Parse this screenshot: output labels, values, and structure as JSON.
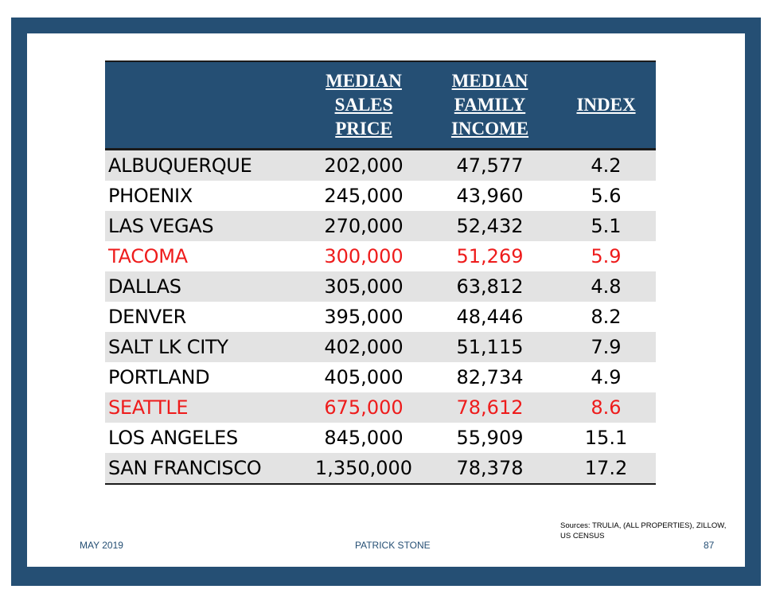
{
  "table": {
    "headers": [
      "",
      "MEDIAN\nSALES\nPRICE",
      "MEDIAN\nFAMILY\nINCOME",
      "INDEX"
    ],
    "rows": [
      {
        "city": "ALBUQUERQUE",
        "price": "202,000",
        "income": "47,577",
        "index": "4.2",
        "highlight": false
      },
      {
        "city": "PHOENIX",
        "price": "245,000",
        "income": "43,960",
        "index": "5.6",
        "highlight": false
      },
      {
        "city": "LAS VEGAS",
        "price": "270,000",
        "income": "52,432",
        "index": "5.1",
        "highlight": false
      },
      {
        "city": "TACOMA",
        "price": "300,000",
        "income": "51,269",
        "index": "5.9",
        "highlight": true
      },
      {
        "city": "DALLAS",
        "price": "305,000",
        "income": "63,812",
        "index": "4.8",
        "highlight": false
      },
      {
        "city": "DENVER",
        "price": "395,000",
        "income": "48,446",
        "index": "8.2",
        "highlight": false
      },
      {
        "city": "SALT LK CITY",
        "price": "402,000",
        "income": "51,115",
        "index": "7.9",
        "highlight": false
      },
      {
        "city": "PORTLAND",
        "price": "405,000",
        "income": "82,734",
        "index": "4.9",
        "highlight": false
      },
      {
        "city": "SEATTLE",
        "price": "675,000",
        "income": "78,612",
        "index": "8.6",
        "highlight": true
      },
      {
        "city": "LOS ANGELES",
        "price": "845,000",
        "income": "55,909",
        "index": "15.1",
        "highlight": false
      },
      {
        "city": "SAN FRANCISCO",
        "price": "1,350,000",
        "income": "78,378",
        "index": "17.2",
        "highlight": false
      }
    ]
  },
  "sources": "Sources: TRULIA, (ALL PROPERTIES), ZILLOW, US CENSUS",
  "footer": {
    "date": "MAY 2019",
    "author": "PATRICK STONE",
    "page": "87"
  },
  "colors": {
    "frame": "#254f74",
    "header_bg": "#254f74",
    "highlight": "#ee1c1c",
    "stripe": "#e3e3e3"
  }
}
